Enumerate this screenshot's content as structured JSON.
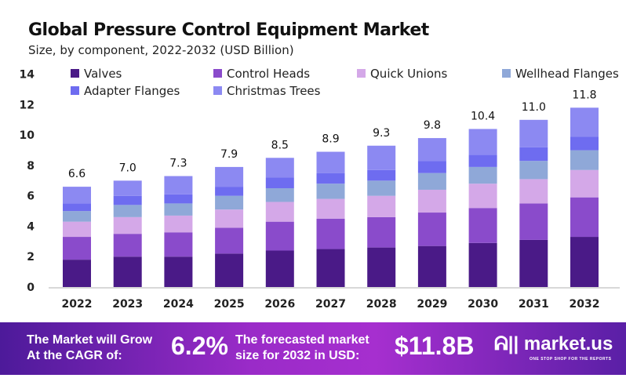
{
  "chart_data": {
    "type": "bar",
    "stacked": true,
    "title": "Global Pressure Control Equipment Market",
    "subtitle": "Size, by component, 2022-2032 (USD Billion)",
    "categories": [
      "2022",
      "2023",
      "2024",
      "2025",
      "2026",
      "2027",
      "2028",
      "2029",
      "2030",
      "2031",
      "2032"
    ],
    "totals": [
      "6.6",
      "7.0",
      "7.3",
      "7.9",
      "8.5",
      "8.9",
      "9.3",
      "9.8",
      "10.4",
      "11.0",
      "11.8"
    ],
    "ylim": [
      0,
      14
    ],
    "yticks": [
      0,
      2,
      4,
      6,
      8,
      10,
      12,
      14
    ],
    "grid": false,
    "legend": "top",
    "series": [
      {
        "name": "Valves",
        "color": "#4a1a87",
        "values": [
          1.8,
          2.0,
          2.0,
          2.2,
          2.4,
          2.5,
          2.6,
          2.7,
          2.9,
          3.1,
          3.3
        ]
      },
      {
        "name": "Control Heads",
        "color": "#8a4bcb",
        "values": [
          1.5,
          1.5,
          1.6,
          1.7,
          1.9,
          2.0,
          2.0,
          2.2,
          2.3,
          2.4,
          2.6
        ]
      },
      {
        "name": "Quick Unions",
        "color": "#d4a8e8",
        "values": [
          1.0,
          1.1,
          1.1,
          1.2,
          1.3,
          1.3,
          1.4,
          1.5,
          1.6,
          1.6,
          1.8
        ]
      },
      {
        "name": "Wellhead Flanges",
        "color": "#8fa8d8",
        "values": [
          0.7,
          0.8,
          0.8,
          0.9,
          0.9,
          1.0,
          1.0,
          1.1,
          1.1,
          1.2,
          1.3
        ]
      },
      {
        "name": "Adapter Flanges",
        "color": "#6e6cf0",
        "values": [
          0.5,
          0.6,
          0.6,
          0.6,
          0.7,
          0.7,
          0.7,
          0.8,
          0.8,
          0.9,
          0.9
        ]
      },
      {
        "name": "Christmas Trees",
        "color": "#8c89f2",
        "values": [
          1.1,
          1.0,
          1.2,
          1.3,
          1.3,
          1.4,
          1.6,
          1.5,
          1.7,
          1.8,
          1.9
        ]
      }
    ]
  },
  "footer": {
    "cagr_label_1": "The Market will Grow",
    "cagr_label_2": "At the CAGR of:",
    "cagr": "6.2%",
    "forecast_label_1": "The forecasted market",
    "forecast_label_2": "size for 2032 in USD:",
    "forecast": "$11.8B",
    "logo": "market.us",
    "tagline": "ONE STOP SHOP FOR THE REPORTS"
  }
}
